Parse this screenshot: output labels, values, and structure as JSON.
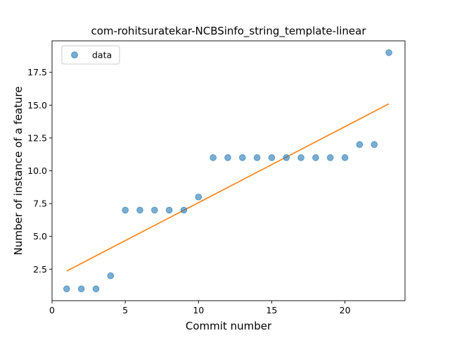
{
  "chart_data": {
    "type": "scatter",
    "title": "com-rohitsuratekar-NCBSinfo_string_template-linear",
    "xlabel": "Commit number",
    "ylabel": "Number of instance of a feature",
    "xlim": [
      0,
      24.1
    ],
    "ylim": [
      0.1,
      19.9
    ],
    "xticks": [
      0,
      5,
      10,
      15,
      20
    ],
    "xtick_labels": [
      "0",
      "5",
      "10",
      "15",
      "20"
    ],
    "yticks": [
      2.5,
      5.0,
      7.5,
      10.0,
      12.5,
      15.0,
      17.5
    ],
    "ytick_labels": [
      "2.5",
      "5.0",
      "7.5",
      "10.0",
      "12.5",
      "15.0",
      "17.5"
    ],
    "grid": false,
    "legend_position": "upper-left",
    "series": [
      {
        "name": "data",
        "kind": "scatter",
        "color": "#1f77b4",
        "x": [
          1,
          2,
          3,
          4,
          5,
          6,
          7,
          8,
          9,
          10,
          11,
          12,
          13,
          14,
          15,
          16,
          17,
          18,
          19,
          20,
          21,
          22,
          23
        ],
        "y": [
          1,
          1,
          1,
          2,
          7,
          7,
          7,
          7,
          7,
          8,
          11,
          11,
          11,
          11,
          11,
          11,
          11,
          11,
          11,
          11,
          12,
          12,
          19
        ]
      },
      {
        "kind": "line",
        "color": "#ff7f0e",
        "x": [
          1,
          23
        ],
        "y": [
          2.36,
          15.1
        ]
      }
    ]
  }
}
